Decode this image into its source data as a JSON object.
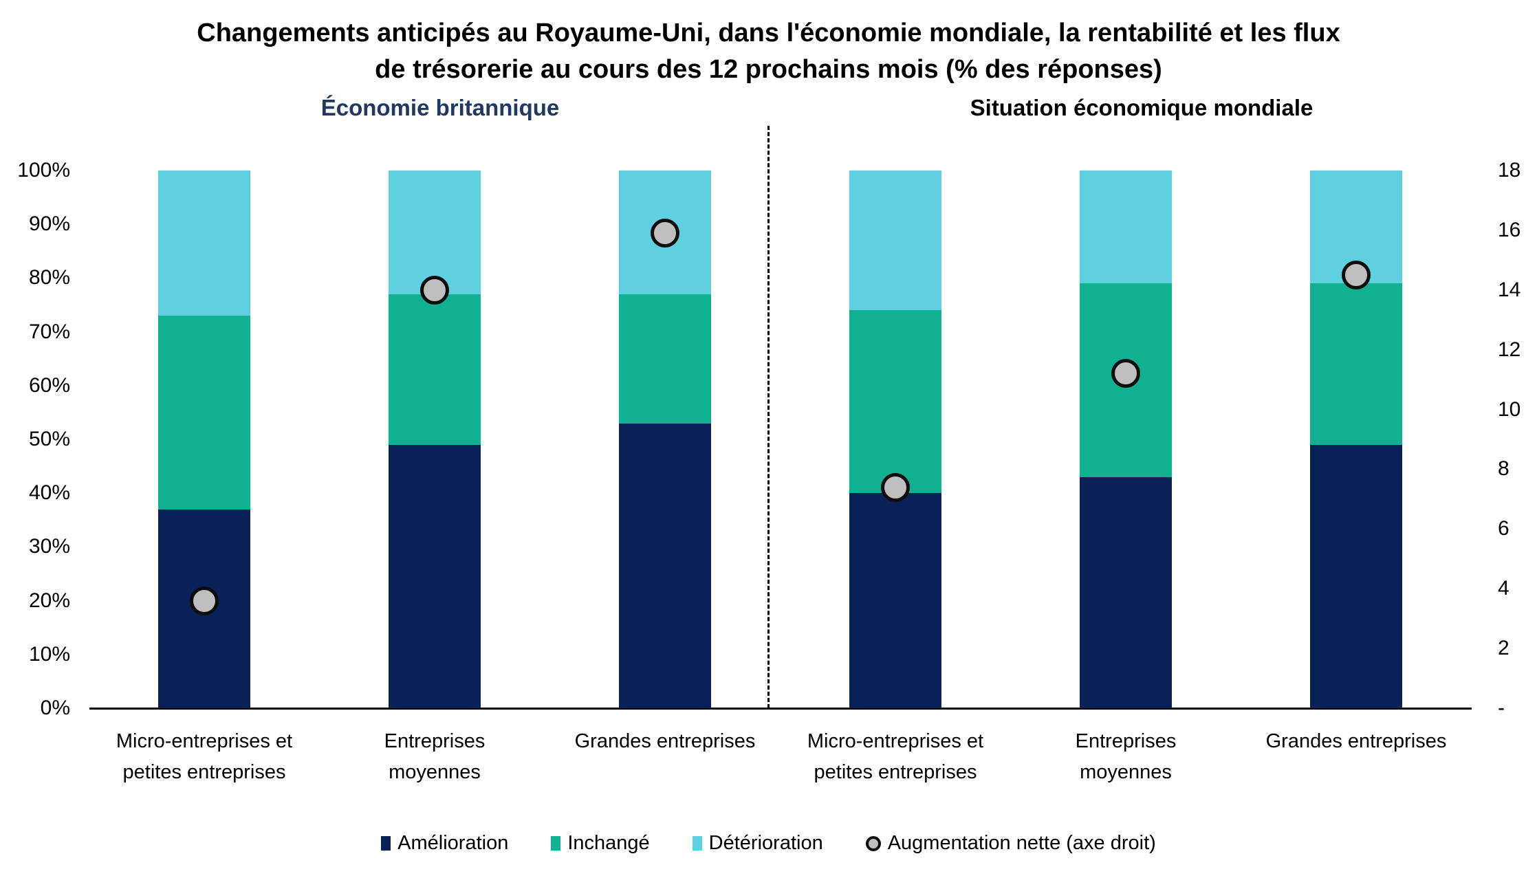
{
  "title": {
    "line1": "Changements anticipés au Royaume-Uni, dans l'économie mondiale, la rentabilité et les flux",
    "line2": "de trésorerie au cours des 12 prochains mois (% des réponses)"
  },
  "panels": [
    {
      "label": "Économie britannique",
      "color": "#1f3864"
    },
    {
      "label": "Situation économique mondiale",
      "color": "#000000"
    }
  ],
  "chart_data": {
    "type": "bar",
    "stacked": true,
    "grid": false,
    "legend_position": "bottom",
    "title": "Changements anticipés au Royaume-Uni, dans l'économie mondiale, la rentabilité et les flux de trésorerie au cours des 12 prochains mois (% des réponses)",
    "panel_titles": [
      "Économie britannique",
      "Situation économique mondiale"
    ],
    "categories": [
      "Micro-entreprises et petites entreprises",
      "Entreprises moyennes",
      "Grandes entreprises",
      "Micro-entreprises et petites entreprises",
      "Entreprises moyennes",
      "Grandes entreprises"
    ],
    "category_lines": [
      [
        "Micro-entreprises et",
        "petites entreprises"
      ],
      [
        "Entreprises",
        "moyennes"
      ],
      [
        "Grandes entreprises"
      ],
      [
        "Micro-entreprises et",
        "petites entreprises"
      ],
      [
        "Entreprises",
        "moyennes"
      ],
      [
        "Grandes entreprises"
      ]
    ],
    "series": [
      {
        "name": "Amélioration",
        "color": "#0a2158",
        "values": [
          37,
          49,
          53,
          40,
          43,
          49
        ]
      },
      {
        "name": "Inchangé",
        "color": "#0fb191",
        "values": [
          36,
          28,
          24,
          34,
          36,
          30
        ]
      },
      {
        "name": "Détérioration",
        "color": "#5fd0e0",
        "values": [
          27,
          23,
          23,
          26,
          21,
          21
        ]
      }
    ],
    "scatter_series": {
      "name": "Augmentation nette (axe droit)",
      "axis": "right",
      "marker_fill": "#bfbfbf",
      "marker_border": "#0d0d0d",
      "values": [
        3.6,
        14.0,
        15.9,
        7.4,
        11.2,
        14.5
      ]
    },
    "left_axis": {
      "min": 0,
      "max": 100,
      "step": 10,
      "ticks": [
        "0%",
        "10%",
        "20%",
        "30%",
        "40%",
        "50%",
        "60%",
        "70%",
        "80%",
        "90%",
        "100%"
      ]
    },
    "right_axis": {
      "min": 0,
      "max": 18,
      "step": 2,
      "ticks": [
        "-",
        "2",
        "4",
        "6",
        "8",
        "10",
        "12",
        "14",
        "16",
        "18"
      ]
    }
  },
  "legend": {
    "items": [
      "Amélioration",
      "Inchangé",
      "Détérioration",
      "Augmentation nette (axe droit)"
    ]
  }
}
